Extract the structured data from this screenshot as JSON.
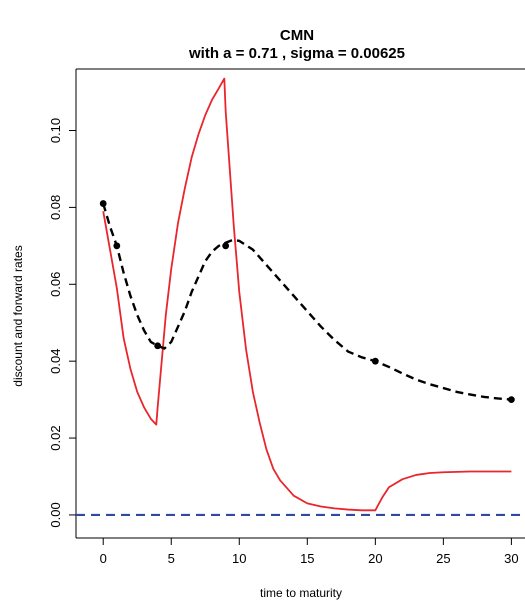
{
  "chart_data": {
    "type": "line",
    "title": "CMN",
    "subtitle": "with a = 0.71 , sigma = 0.00625",
    "xlabel": "time to maturity",
    "ylabel": "discount and forward rates",
    "xlim": [
      -2,
      31
    ],
    "ylim": [
      -0.006,
      0.116
    ],
    "xticks": [
      0,
      5,
      10,
      15,
      20,
      25,
      30
    ],
    "yticks": [
      0.0,
      0.02,
      0.04,
      0.06,
      0.08,
      0.1
    ],
    "ytick_labels": [
      "0.00",
      "0.02",
      "0.04",
      "0.06",
      "0.08",
      "0.10"
    ],
    "grid": false,
    "legend": "none",
    "colors": {
      "series_red": "#e8262c",
      "series_black": "#000000",
      "zero_line": "#2f4aa0"
    },
    "series": [
      {
        "style": "solid-red",
        "x": [
          0,
          0.5,
          1,
          1.5,
          2,
          2.5,
          3,
          3.5,
          3.9,
          4,
          4.3,
          4.6,
          5,
          5.5,
          6,
          6.5,
          7,
          7.5,
          8,
          8.5,
          8.9,
          9,
          9.3,
          9.6,
          10,
          10.5,
          11,
          11.5,
          12,
          12.5,
          13,
          14,
          15,
          16,
          17,
          18,
          19,
          20,
          20.5,
          21,
          22,
          23,
          24,
          25,
          26,
          27,
          28,
          29,
          30
        ],
        "y": [
          0.079,
          0.069,
          0.059,
          0.046,
          0.038,
          0.032,
          0.028,
          0.025,
          0.0235,
          0.028,
          0.04,
          0.052,
          0.064,
          0.076,
          0.085,
          0.093,
          0.099,
          0.104,
          0.108,
          0.111,
          0.1135,
          0.105,
          0.09,
          0.075,
          0.058,
          0.043,
          0.032,
          0.024,
          0.017,
          0.012,
          0.009,
          0.005,
          0.003,
          0.0022,
          0.0017,
          0.0014,
          0.0012,
          0.0012,
          0.0045,
          0.0072,
          0.0093,
          0.0104,
          0.0109,
          0.0111,
          0.0112,
          0.0113,
          0.0113,
          0.0113,
          0.0113
        ]
      },
      {
        "style": "dashed-black",
        "x": [
          0,
          0.5,
          1,
          1.5,
          2,
          2.5,
          3,
          3.5,
          4,
          4.5,
          5,
          5.5,
          6,
          6.5,
          7,
          7.5,
          8,
          8.5,
          9,
          9.5,
          10,
          11,
          12,
          13,
          14,
          15,
          16,
          17,
          18,
          19,
          20,
          21,
          22,
          23,
          24,
          25,
          26,
          27,
          28,
          29,
          30
        ],
        "y": [
          0.081,
          0.075,
          0.07,
          0.063,
          0.057,
          0.052,
          0.048,
          0.045,
          0.044,
          0.0433,
          0.045,
          0.049,
          0.053,
          0.058,
          0.062,
          0.066,
          0.0685,
          0.07,
          0.0708,
          0.0715,
          0.0713,
          0.069,
          0.065,
          0.061,
          0.057,
          0.053,
          0.049,
          0.0455,
          0.0425,
          0.041,
          0.04,
          0.0385,
          0.0368,
          0.0352,
          0.034,
          0.033,
          0.032,
          0.0313,
          0.0307,
          0.0303,
          0.03
        ]
      }
    ],
    "points": {
      "x": [
        0,
        1,
        4,
        9,
        20,
        30
      ],
      "y": [
        0.081,
        0.07,
        0.044,
        0.07,
        0.04,
        0.03
      ]
    },
    "reference_line": {
      "y": 0,
      "style": "dashed-blue"
    }
  }
}
